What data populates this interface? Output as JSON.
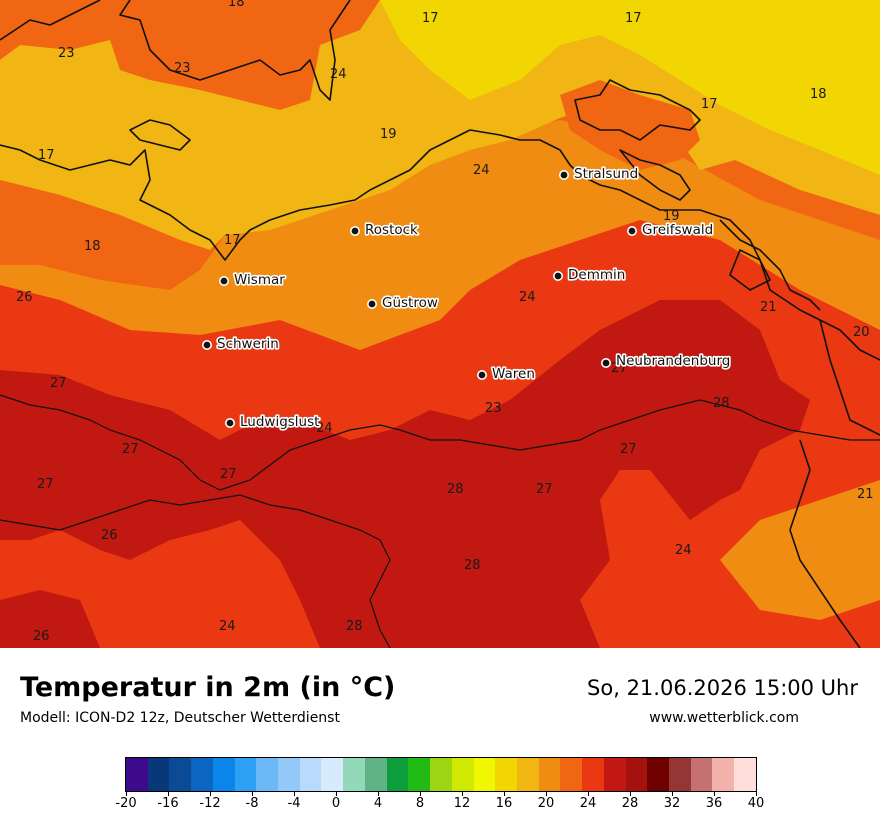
{
  "map": {
    "cities": [
      {
        "name": "Stralsund"
      },
      {
        "name": "Greifswald"
      },
      {
        "name": "Rostock"
      },
      {
        "name": "Wismar"
      },
      {
        "name": "Demmin"
      },
      {
        "name": "Güstrow"
      },
      {
        "name": "Schwerin"
      },
      {
        "name": "Neubrandenburg"
      },
      {
        "name": "Waren"
      },
      {
        "name": "Ludwigslust"
      }
    ],
    "value_labels": [
      "18",
      "17",
      "17",
      "23",
      "23",
      "24",
      "19",
      "17",
      "18",
      "17",
      "24",
      "18",
      "17",
      "19",
      "26",
      "24",
      "21",
      "20",
      "27",
      "27",
      "23",
      "28",
      "27",
      "24",
      "27",
      "27",
      "28",
      "27",
      "21",
      "27",
      "26",
      "28",
      "24",
      "26",
      "24",
      "28"
    ]
  },
  "footer": {
    "title": "Temperatur in 2m (in °C)",
    "subtitle": "Modell: ICON-D2 12z, Deutscher Wetterdienst",
    "datetime": "So, 21.06.2026 15:00 Uhr",
    "website": "www.wetterblick.com"
  },
  "legend": {
    "colors": [
      "#3d0a8c",
      "#08377a",
      "#0b4a94",
      "#0a66c2",
      "#0a86e8",
      "#2ea0f5",
      "#6cb8f7",
      "#93c9f9",
      "#b8dbfb",
      "#d8ebfd",
      "#91d9b9",
      "#5fb387",
      "#0d9e3c",
      "#22bb15",
      "#9fd614",
      "#cfe903",
      "#f1f700",
      "#f1d604",
      "#f1b613",
      "#f18c12",
      "#f06612",
      "#e93812",
      "#c11811",
      "#a3120f",
      "#6f0000",
      "#953535",
      "#c57171",
      "#f4b2ad",
      "#ffdedb"
    ],
    "tick_labels": [
      "-20",
      "-16",
      "-12",
      "-8",
      "-4",
      "0",
      "4",
      "8",
      "12",
      "16",
      "20",
      "24",
      "28",
      "32",
      "36",
      "40"
    ]
  }
}
